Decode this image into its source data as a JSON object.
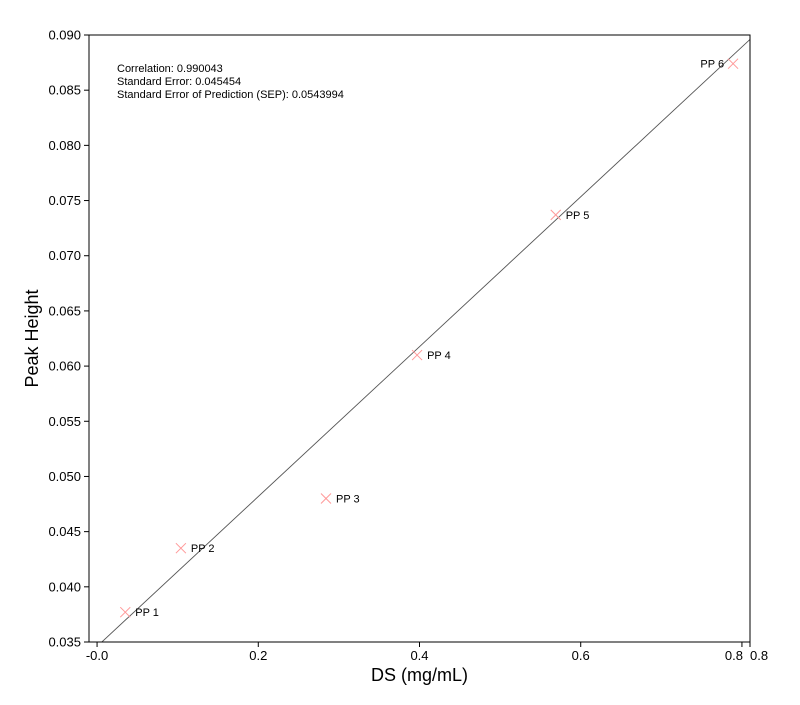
{
  "chart_data": {
    "type": "scatter",
    "xlabel": "DS (mg/mL)",
    "ylabel": "Peak Height",
    "xlim": [
      -0.01,
      0.81
    ],
    "ylim": [
      0.035,
      0.09
    ],
    "x_ticks": [
      {
        "value": -0.0,
        "label": "-0.0"
      },
      {
        "value": 0.2,
        "label": "0.2"
      },
      {
        "value": 0.4,
        "label": "0.4"
      },
      {
        "value": 0.6,
        "label": "0.6"
      },
      {
        "value": 0.8,
        "label": "0.8"
      },
      {
        "value": 0.81,
        "label": "0.8"
      }
    ],
    "y_ticks": [
      {
        "value": 0.035,
        "label": "0.035"
      },
      {
        "value": 0.04,
        "label": "0.040"
      },
      {
        "value": 0.045,
        "label": "0.045"
      },
      {
        "value": 0.05,
        "label": "0.050"
      },
      {
        "value": 0.055,
        "label": "0.055"
      },
      {
        "value": 0.06,
        "label": "0.060"
      },
      {
        "value": 0.065,
        "label": "0.065"
      },
      {
        "value": 0.07,
        "label": "0.070"
      },
      {
        "value": 0.075,
        "label": "0.075"
      },
      {
        "value": 0.08,
        "label": "0.080"
      },
      {
        "value": 0.085,
        "label": "0.085"
      },
      {
        "value": 0.09,
        "label": "0.090"
      }
    ],
    "points": [
      {
        "label": "PP 1",
        "x": 0.035,
        "y": 0.0377
      },
      {
        "label": "PP 2",
        "x": 0.104,
        "y": 0.0435
      },
      {
        "label": "PP 3",
        "x": 0.284,
        "y": 0.048
      },
      {
        "label": "PP 4",
        "x": 0.397,
        "y": 0.061
      },
      {
        "label": "PP 5",
        "x": 0.569,
        "y": 0.0737
      },
      {
        "label": "PP 6",
        "x": 0.789,
        "y": 0.0874
      }
    ],
    "fit_line": {
      "x": [
        0.0,
        0.81
      ],
      "y": [
        0.0346,
        0.0896
      ]
    },
    "annotations": [
      "Correlation: 0.990043",
      "Standard Error: 0.045454",
      "Standard Error of Prediction (SEP): 0.0543994"
    ],
    "marker_color": "#ff9999",
    "line_color": "#555555",
    "grid": false
  }
}
